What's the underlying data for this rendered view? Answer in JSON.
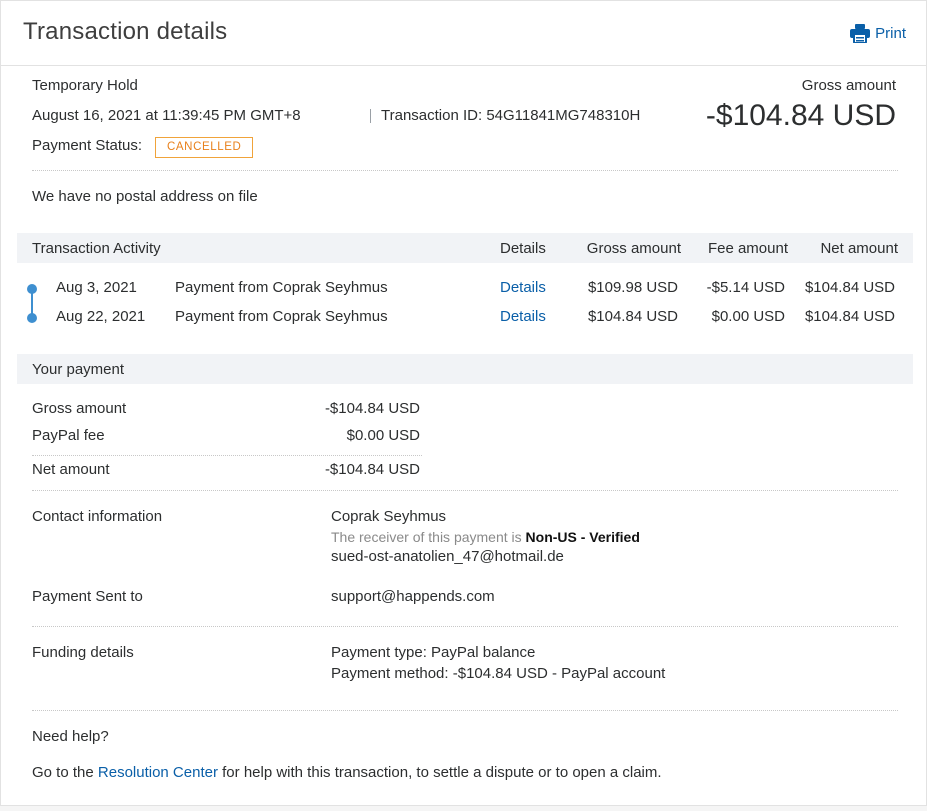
{
  "header": {
    "title": "Transaction details",
    "print_label": "Print"
  },
  "summary": {
    "type_label": "Temporary Hold",
    "date_time": "August 16, 2021 at 11:39:45 PM GMT+8",
    "transaction_id": "Transaction ID: 54G11841MG748310H",
    "gross_label": "Gross amount",
    "gross_amount": "-$104.84 USD",
    "status_label": "Payment Status:",
    "status_value": "CANCELLED",
    "status_color": "#e8801b"
  },
  "postal_note": "We have no postal address on file",
  "activity": {
    "headers": {
      "activity": "Transaction Activity",
      "details": "Details",
      "gross": "Gross amount",
      "fee": "Fee amount",
      "net": "Net amount"
    },
    "rows": [
      {
        "date": "Aug 3, 2021",
        "description": "Payment from Coprak Seyhmus",
        "details": "Details",
        "gross": "$109.98 USD",
        "fee": "-$5.14 USD",
        "net": "$104.84 USD"
      },
      {
        "date": "Aug 22, 2021",
        "description": "Payment from Coprak Seyhmus",
        "details": "Details",
        "gross": "$104.84 USD",
        "fee": "$0.00 USD",
        "net": "$104.84 USD"
      }
    ],
    "timeline_color": "#3e8fd0"
  },
  "your_payment": {
    "title": "Your payment",
    "gross_label": "Gross amount",
    "gross_value": "-$104.84 USD",
    "fee_label": "PayPal fee",
    "fee_value": "$0.00 USD",
    "net_label": "Net amount",
    "net_value": "-$104.84 USD"
  },
  "contact": {
    "label": "Contact information",
    "name": "Coprak Seyhmus",
    "receiver_prefix": "The receiver of this payment is",
    "receiver_status": "Non-US - Verified",
    "email": "sued-ost-anatolien_47@hotmail.de"
  },
  "sent_to": {
    "label": "Payment Sent to",
    "value": "support@happends.com"
  },
  "funding": {
    "label": "Funding details",
    "type": "Payment type: PayPal balance",
    "method": "Payment method: -$104.84 USD - PayPal account"
  },
  "help": {
    "title": "Need help?",
    "prefix": "Go to the",
    "link": "Resolution Center",
    "suffix": "for help with this transaction, to settle a dispute or to open a claim."
  },
  "colors": {
    "link": "#0a5fa8",
    "band": "#f1f3f6",
    "badge_border": "#f0a33a"
  }
}
